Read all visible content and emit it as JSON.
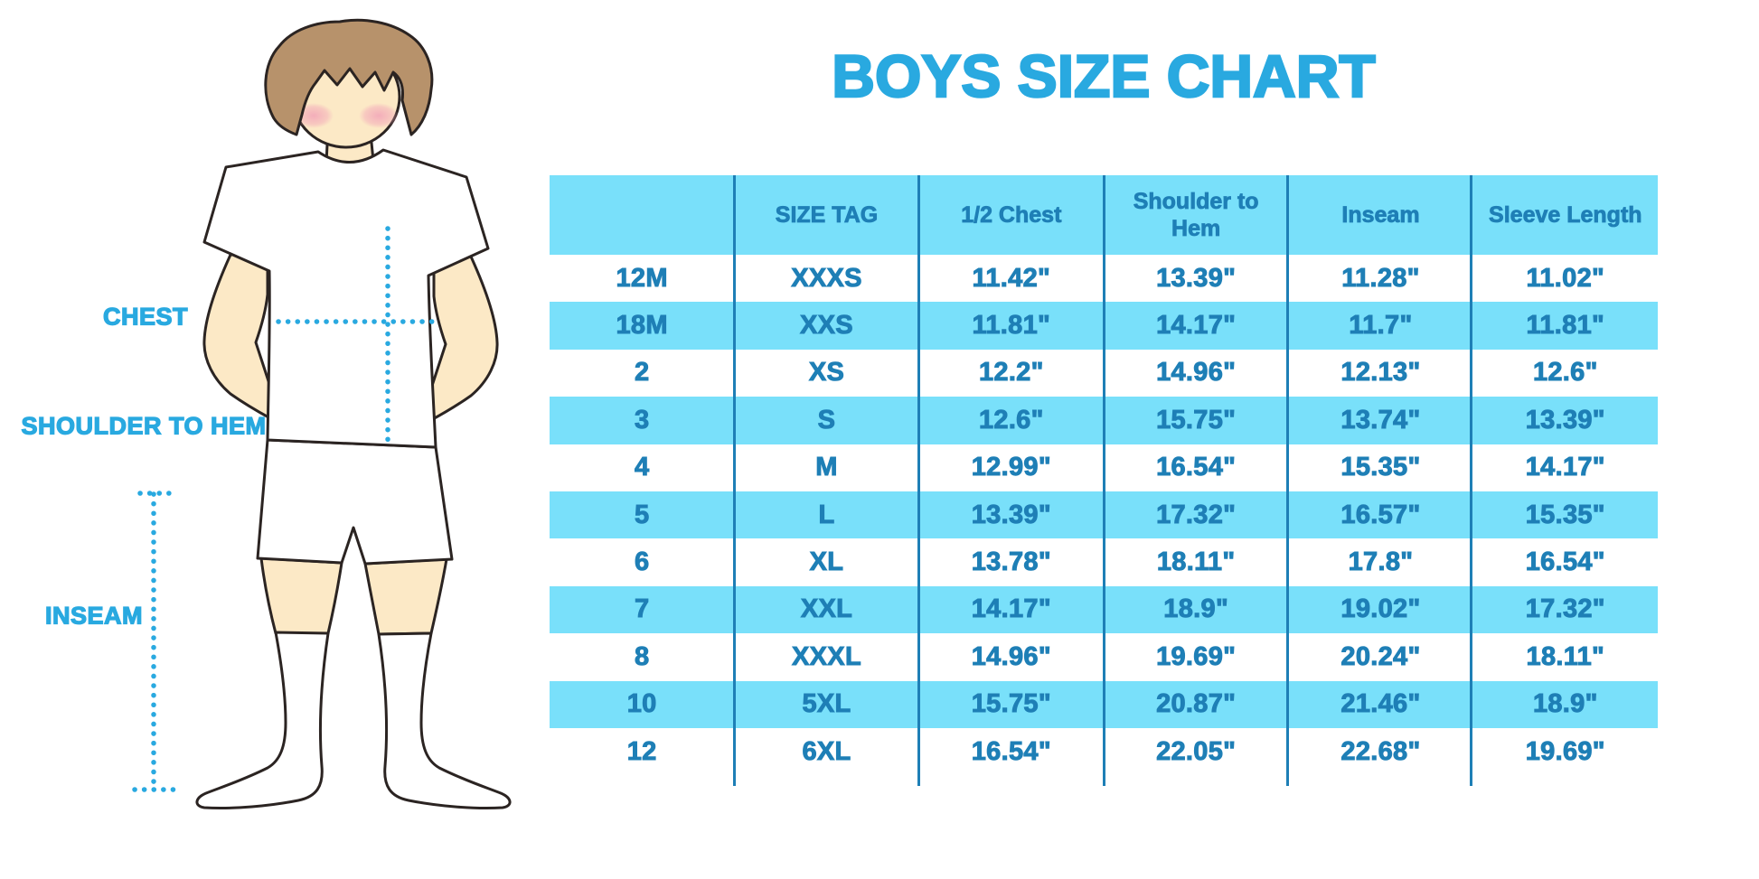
{
  "chart_data": {
    "type": "table",
    "title": "BOYS SIZE CHART",
    "columns": [
      "",
      "SIZE TAG",
      "1/2 Chest",
      "Shoulder to Hem",
      "Inseam",
      "Sleeve Length"
    ],
    "rows": [
      [
        "12M",
        "XXXS",
        "11.42\"",
        "13.39\"",
        "11.28\"",
        "11.02\""
      ],
      [
        "18M",
        "XXS",
        "11.81\"",
        "14.17\"",
        "11.7\"",
        "11.81\""
      ],
      [
        "2",
        "XS",
        "12.2\"",
        "14.96\"",
        "12.13\"",
        "12.6\""
      ],
      [
        "3",
        "S",
        "12.6\"",
        "15.75\"",
        "13.74\"",
        "13.39\""
      ],
      [
        "4",
        "M",
        "12.99\"",
        "16.54\"",
        "15.35\"",
        "14.17\""
      ],
      [
        "5",
        "L",
        "13.39\"",
        "17.32\"",
        "16.57\"",
        "15.35\""
      ],
      [
        "6",
        "XL",
        "13.78\"",
        "18.11\"",
        "17.8\"",
        "16.54\""
      ],
      [
        "7",
        "XXL",
        "14.17\"",
        "18.9\"",
        "19.02\"",
        "17.32\""
      ],
      [
        "8",
        "XXXL",
        "14.96\"",
        "19.69\"",
        "20.24\"",
        "18.11\""
      ],
      [
        "10",
        "5XL",
        "15.75\"",
        "20.87\"",
        "21.46\"",
        "18.9\""
      ],
      [
        "12",
        "6XL",
        "16.54\"",
        "22.05\"",
        "22.68\"",
        "19.69\""
      ]
    ],
    "layout_hints": {
      "striped": true,
      "header_row": "filled",
      "grid": "vertical-dividers-only"
    }
  },
  "diagram": {
    "labels": {
      "chest": "CHEST",
      "shoulder_to_hem": "SHOULDER TO HEM",
      "inseam": "INSEAM"
    }
  },
  "colors": {
    "accent": "#29A9E0",
    "table_stripe": "#79E0FA",
    "table_text": "#1E7FB6",
    "hair": "#B7926B",
    "skin": "#FCE9C6",
    "blush": "#F2A3B8",
    "outline": "#2B2422"
  }
}
